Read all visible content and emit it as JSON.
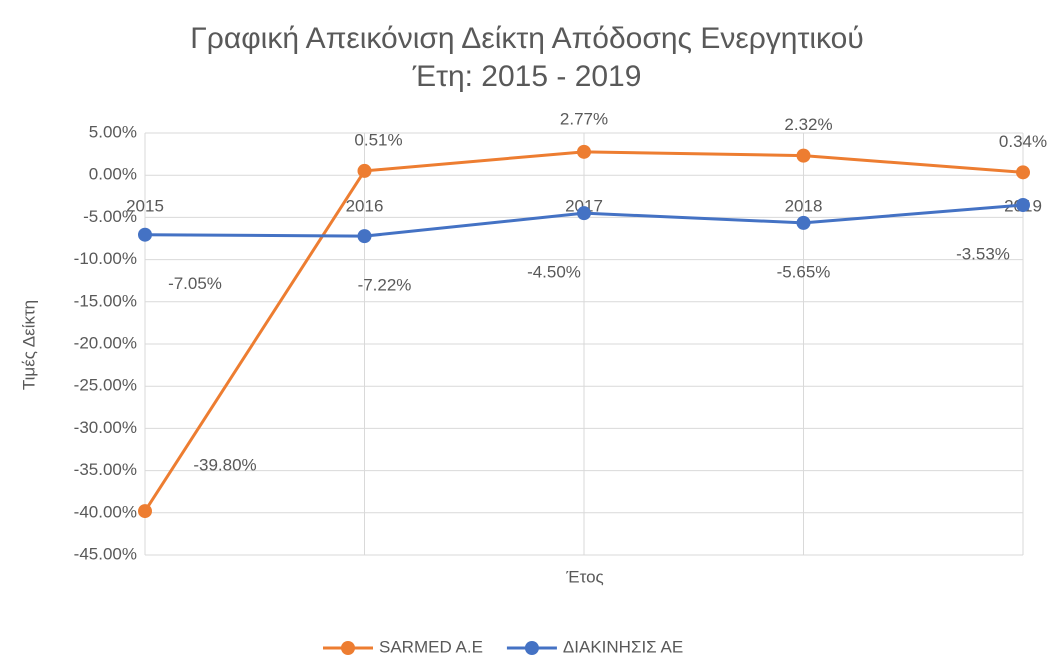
{
  "chart_data": {
    "type": "line",
    "title": "Γραφική Απεικόνιση Δείκτη Απόδοσης Ενεργητικού",
    "subtitle": "Έτη: 2015 - 2019",
    "x_label": "Έτος",
    "y_label": "Τιμές  Δείκτη",
    "categories": [
      "2015",
      "2016",
      "2017",
      "2018",
      "2019"
    ],
    "series": [
      {
        "name": "SARMED A.E",
        "color": "#ed7d31",
        "values": [
          -39.8,
          0.51,
          2.77,
          2.32,
          0.34
        ],
        "value_labels": [
          "-39.80%",
          "0.51%",
          "2.77%",
          "2.32%",
          "0.34%"
        ]
      },
      {
        "name": "ΔΙΑΚΙΝΗΣΙΣ ΑΕ",
        "color": "#4472c4",
        "values": [
          -7.05,
          -7.22,
          -4.5,
          -5.65,
          -3.53
        ],
        "value_labels": [
          "-7.05%",
          "-7.22%",
          "-4.50%",
          "-5.65%",
          "-3.53%"
        ]
      }
    ],
    "ylim": [
      -45,
      5
    ],
    "yticks": [
      {
        "value": 5,
        "label": "5.00%"
      },
      {
        "value": 0,
        "label": "0.00%"
      },
      {
        "value": -5,
        "label": "-5.00%"
      },
      {
        "value": -10,
        "label": "-10.00%"
      },
      {
        "value": -15,
        "label": "-15.00%"
      },
      {
        "value": -20,
        "label": "-20.00%"
      },
      {
        "value": -25,
        "label": "-25.00%"
      },
      {
        "value": -30,
        "label": "-30.00%"
      },
      {
        "value": -35,
        "label": "-35.00%"
      },
      {
        "value": -40,
        "label": "-40.00%"
      },
      {
        "value": -45,
        "label": "-45.00%"
      }
    ],
    "grid": true,
    "legend": "bottom"
  }
}
